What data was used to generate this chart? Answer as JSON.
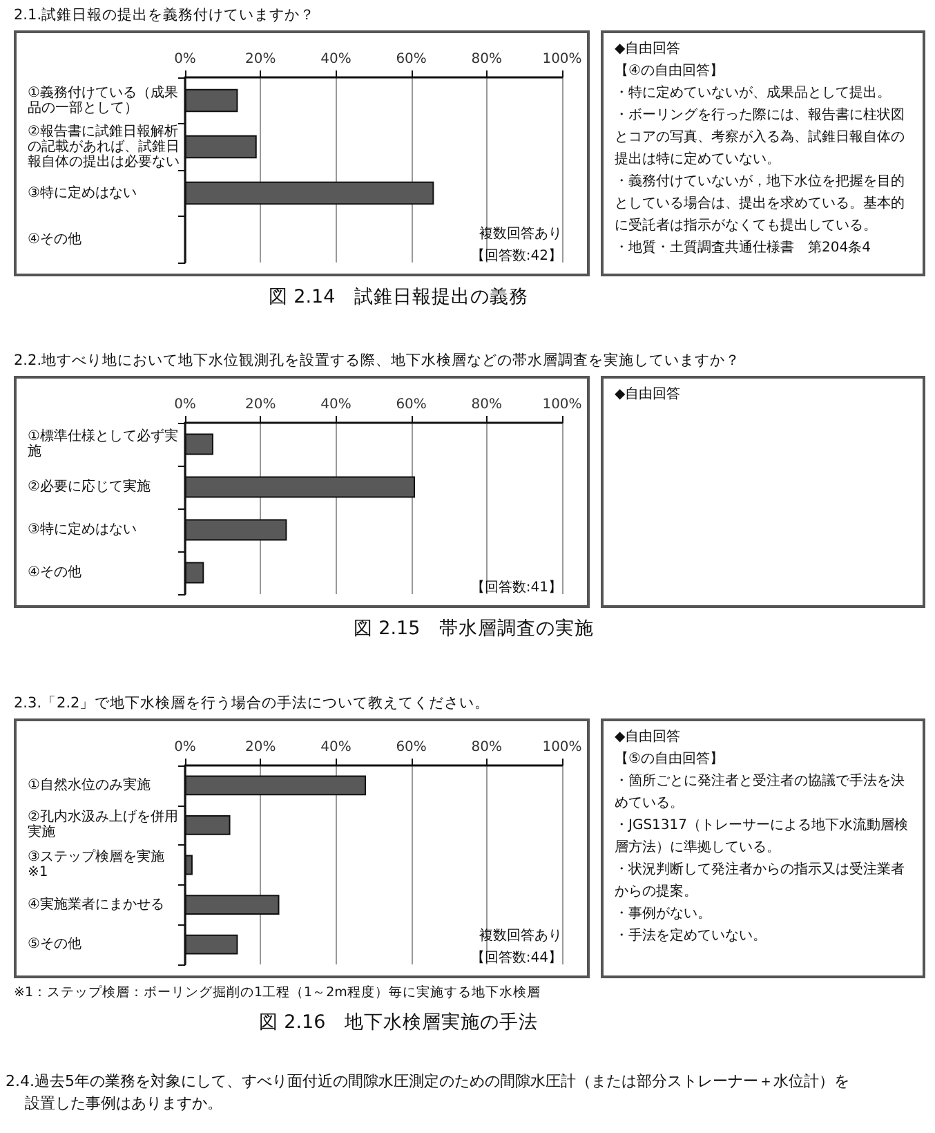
{
  "chart_data": [
    {
      "type": "bar",
      "orientation": "horizontal",
      "title": "2.1.試錐日報の提出を義務付けていますか？",
      "subtitle": "図 2.14　試錐日報提出の義務",
      "categories": [
        "①義務付けている（成果品の一部として）",
        "②報告書に試錐日報解析の記載があれば、試錐日報自体の提出は必要ない",
        "③特に定めはない",
        "④その他"
      ],
      "values": [
        14,
        19,
        66,
        0
      ],
      "color": "#595959",
      "xlim": [
        0,
        100
      ],
      "xticks": [
        {
          "value": 0,
          "label": "0%"
        },
        {
          "value": 20,
          "label": "20%"
        },
        {
          "value": 40,
          "label": "40%"
        },
        {
          "value": 60,
          "label": "60%"
        },
        {
          "value": 80,
          "label": "80%"
        },
        {
          "value": 100,
          "label": "100%"
        }
      ],
      "grid": "x",
      "annotations": [
        "複数回答あり",
        "【回答数:42】"
      ]
    },
    {
      "type": "other",
      "title": "◆自由回答",
      "annotations": [
        "【④の自由回答】",
        "・特に定めていないが、成果品として提出。",
        "・ボーリングを行った際には、報告書に柱状図とコアの写真、考察が入る為、試錐日報自体の提出は特に定めていない。",
        "・義務付けていないが，地下水位を把握を目的としている場合は、提出を求めている。基本的に受託者は指示がなくても提出している。",
        "・地質・土質調査共通仕様書　第204条4"
      ]
    },
    {
      "type": "bar",
      "orientation": "horizontal",
      "title": "2.2.地すべり地において地下水位観測孔を設置する際、地下水検層などの帯水層調査を実施していますか？",
      "subtitle": "図 2.15　帯水層調査の実施",
      "categories": [
        "①標準仕様として必ず実施",
        "②必要に応じて実施",
        "③特に定めはない",
        "④その他"
      ],
      "values": [
        7.5,
        61,
        27,
        5
      ],
      "color": "#595959",
      "xlim": [
        0,
        100
      ],
      "xticks": [
        {
          "value": 0,
          "label": "0%"
        },
        {
          "value": 20,
          "label": "20%"
        },
        {
          "value": 40,
          "label": "40%"
        },
        {
          "value": 60,
          "label": "60%"
        },
        {
          "value": 80,
          "label": "80%"
        },
        {
          "value": 100,
          "label": "100%"
        }
      ],
      "grid": "x",
      "annotations": [
        "【回答数:41】"
      ]
    },
    {
      "type": "other",
      "title": "◆自由回答"
    },
    {
      "type": "bar",
      "orientation": "horizontal",
      "title": "2.3.「2.2」で地下水検層を行う場合の手法について教えてください。",
      "subtitle": "図 2.16　地下水検層実施の手法",
      "categories": [
        "①自然水位のみ実施",
        "②孔内水汲み上げを併用実施",
        "③ステップ検層を実施※1",
        "④実施業者にまかせる",
        "⑤その他"
      ],
      "values": [
        48,
        12,
        2,
        25,
        14
      ],
      "color": "#595959",
      "xlim": [
        0,
        100
      ],
      "xticks": [
        {
          "value": 0,
          "label": "0%"
        },
        {
          "value": 20,
          "label": "20%"
        },
        {
          "value": 40,
          "label": "40%"
        },
        {
          "value": 60,
          "label": "60%"
        },
        {
          "value": 80,
          "label": "80%"
        },
        {
          "value": 100,
          "label": "100%"
        }
      ],
      "grid": "x",
      "annotations": [
        "複数回答あり",
        "【回答数:44】",
        "※1：ステップ検層：ボーリング掘削の1工程（1～2m程度）毎に実施する地下水検層"
      ]
    },
    {
      "type": "other",
      "title": "◆自由回答",
      "annotations": [
        "【⑤の自由回答】",
        "・箇所ごとに発注者と受注者の協議で手法を決めている。",
        "・JGS1317（トレーサーによる地下水流動層検層方法）に準拠している。",
        "・状況判断して発注者からの指示又は受注業者からの提案。",
        "・事例がない。",
        "・手法を定めていない。"
      ]
    },
    {
      "type": "other",
      "title": "2.4.過去5年の業務を対象にして、すべり面付近の間隙水圧測定のための間隙水圧計（または部分ストレーナー＋水位計）を設置した事例はありますか。"
    }
  ]
}
